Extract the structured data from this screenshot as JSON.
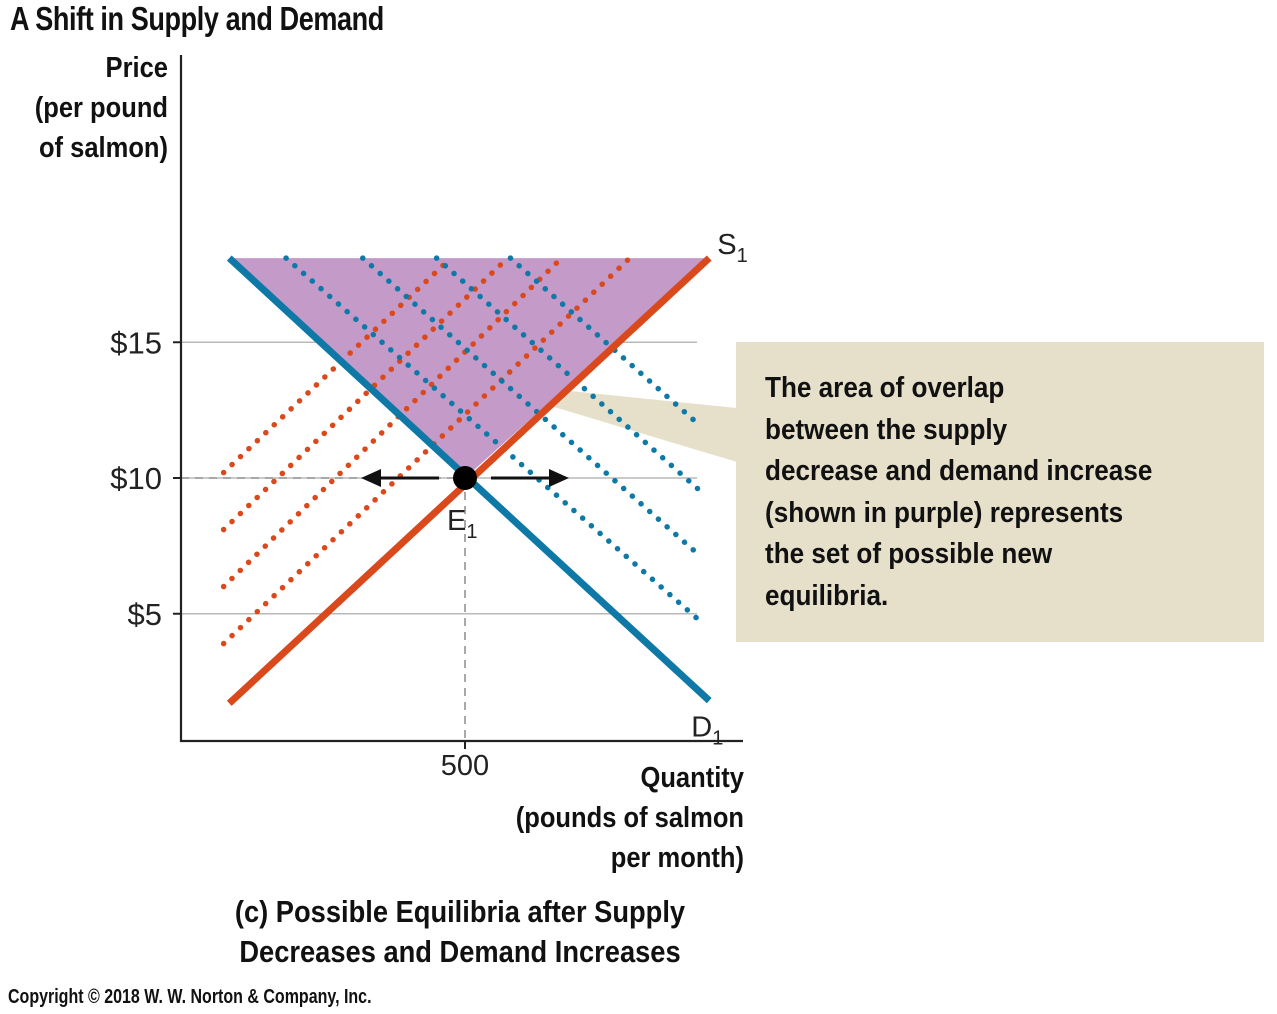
{
  "chart_data": {
    "type": "line",
    "title": "A Shift in Supply and Demand",
    "panel_caption": [
      "(c) Possible Equilibria after Supply",
      "Decreases and Demand Increases"
    ],
    "y_axis_label": [
      "Price",
      "(per pound",
      "of salmon)"
    ],
    "x_axis_label": [
      "Quantity",
      "(pounds of salmon",
      "per month)"
    ],
    "y_ticks": [
      {
        "value": 15,
        "label": "$15"
      },
      {
        "value": 10,
        "label": "$10"
      },
      {
        "value": 5,
        "label": "$5"
      }
    ],
    "x_ticks": [
      {
        "value": 500,
        "label": "500"
      }
    ],
    "ylim": [
      0,
      20
    ],
    "xlim": [
      0,
      1000
    ],
    "grid": "horizontal at y ticks",
    "curves": [
      {
        "name": "S",
        "subscript": "1",
        "kind": "supply",
        "color": "#d9491c",
        "x": [
          85,
          930
        ],
        "y": [
          1.7,
          18.1
        ]
      },
      {
        "name": "D",
        "subscript": "1",
        "kind": "demand",
        "color": "#0e79a7",
        "x": [
          85,
          930
        ],
        "y": [
          18.1,
          1.8
        ]
      }
    ],
    "shifted_supply_dotted": [
      {
        "x": [
          75,
          790
        ],
        "y": [
          3.9,
          18.1
        ]
      },
      {
        "x": [
          75,
          670
        ],
        "y": [
          6.0,
          18.1
        ]
      },
      {
        "x": [
          75,
          575
        ],
        "y": [
          8.1,
          18.1
        ]
      },
      {
        "x": [
          75,
          475
        ],
        "y": [
          10.2,
          18.1
        ]
      }
    ],
    "shifted_demand_dotted": [
      {
        "x": [
          185,
          910
        ],
        "y": [
          18.1,
          4.8
        ]
      },
      {
        "x": [
          320,
          910
        ],
        "y": [
          18.1,
          7.2
        ]
      },
      {
        "x": [
          450,
          910
        ],
        "y": [
          18.1,
          9.6
        ]
      },
      {
        "x": [
          580,
          910
        ],
        "y": [
          18.1,
          12.0
        ]
      }
    ],
    "shaded_region": {
      "color": "#c49ac8",
      "vertices": [
        [
          85,
          18.1
        ],
        [
          930,
          18.1
        ],
        [
          500,
          10
        ]
      ]
    },
    "equilibrium": {
      "label": "E",
      "subscript": "1",
      "x": 500,
      "y": 10
    },
    "callout": {
      "lines": [
        "The area of overlap",
        "between the supply",
        "decrease and demand increase",
        "(shown in purple) represents",
        "the set of possible new",
        "equilibria."
      ],
      "color": "#e6e0cb"
    },
    "colors": {
      "supply": "#d9491c",
      "demand": "#0e79a7",
      "overlap": "#c49ac8"
    }
  },
  "copyright": "Copyright © 2018 W. W. Norton & Company, Inc."
}
